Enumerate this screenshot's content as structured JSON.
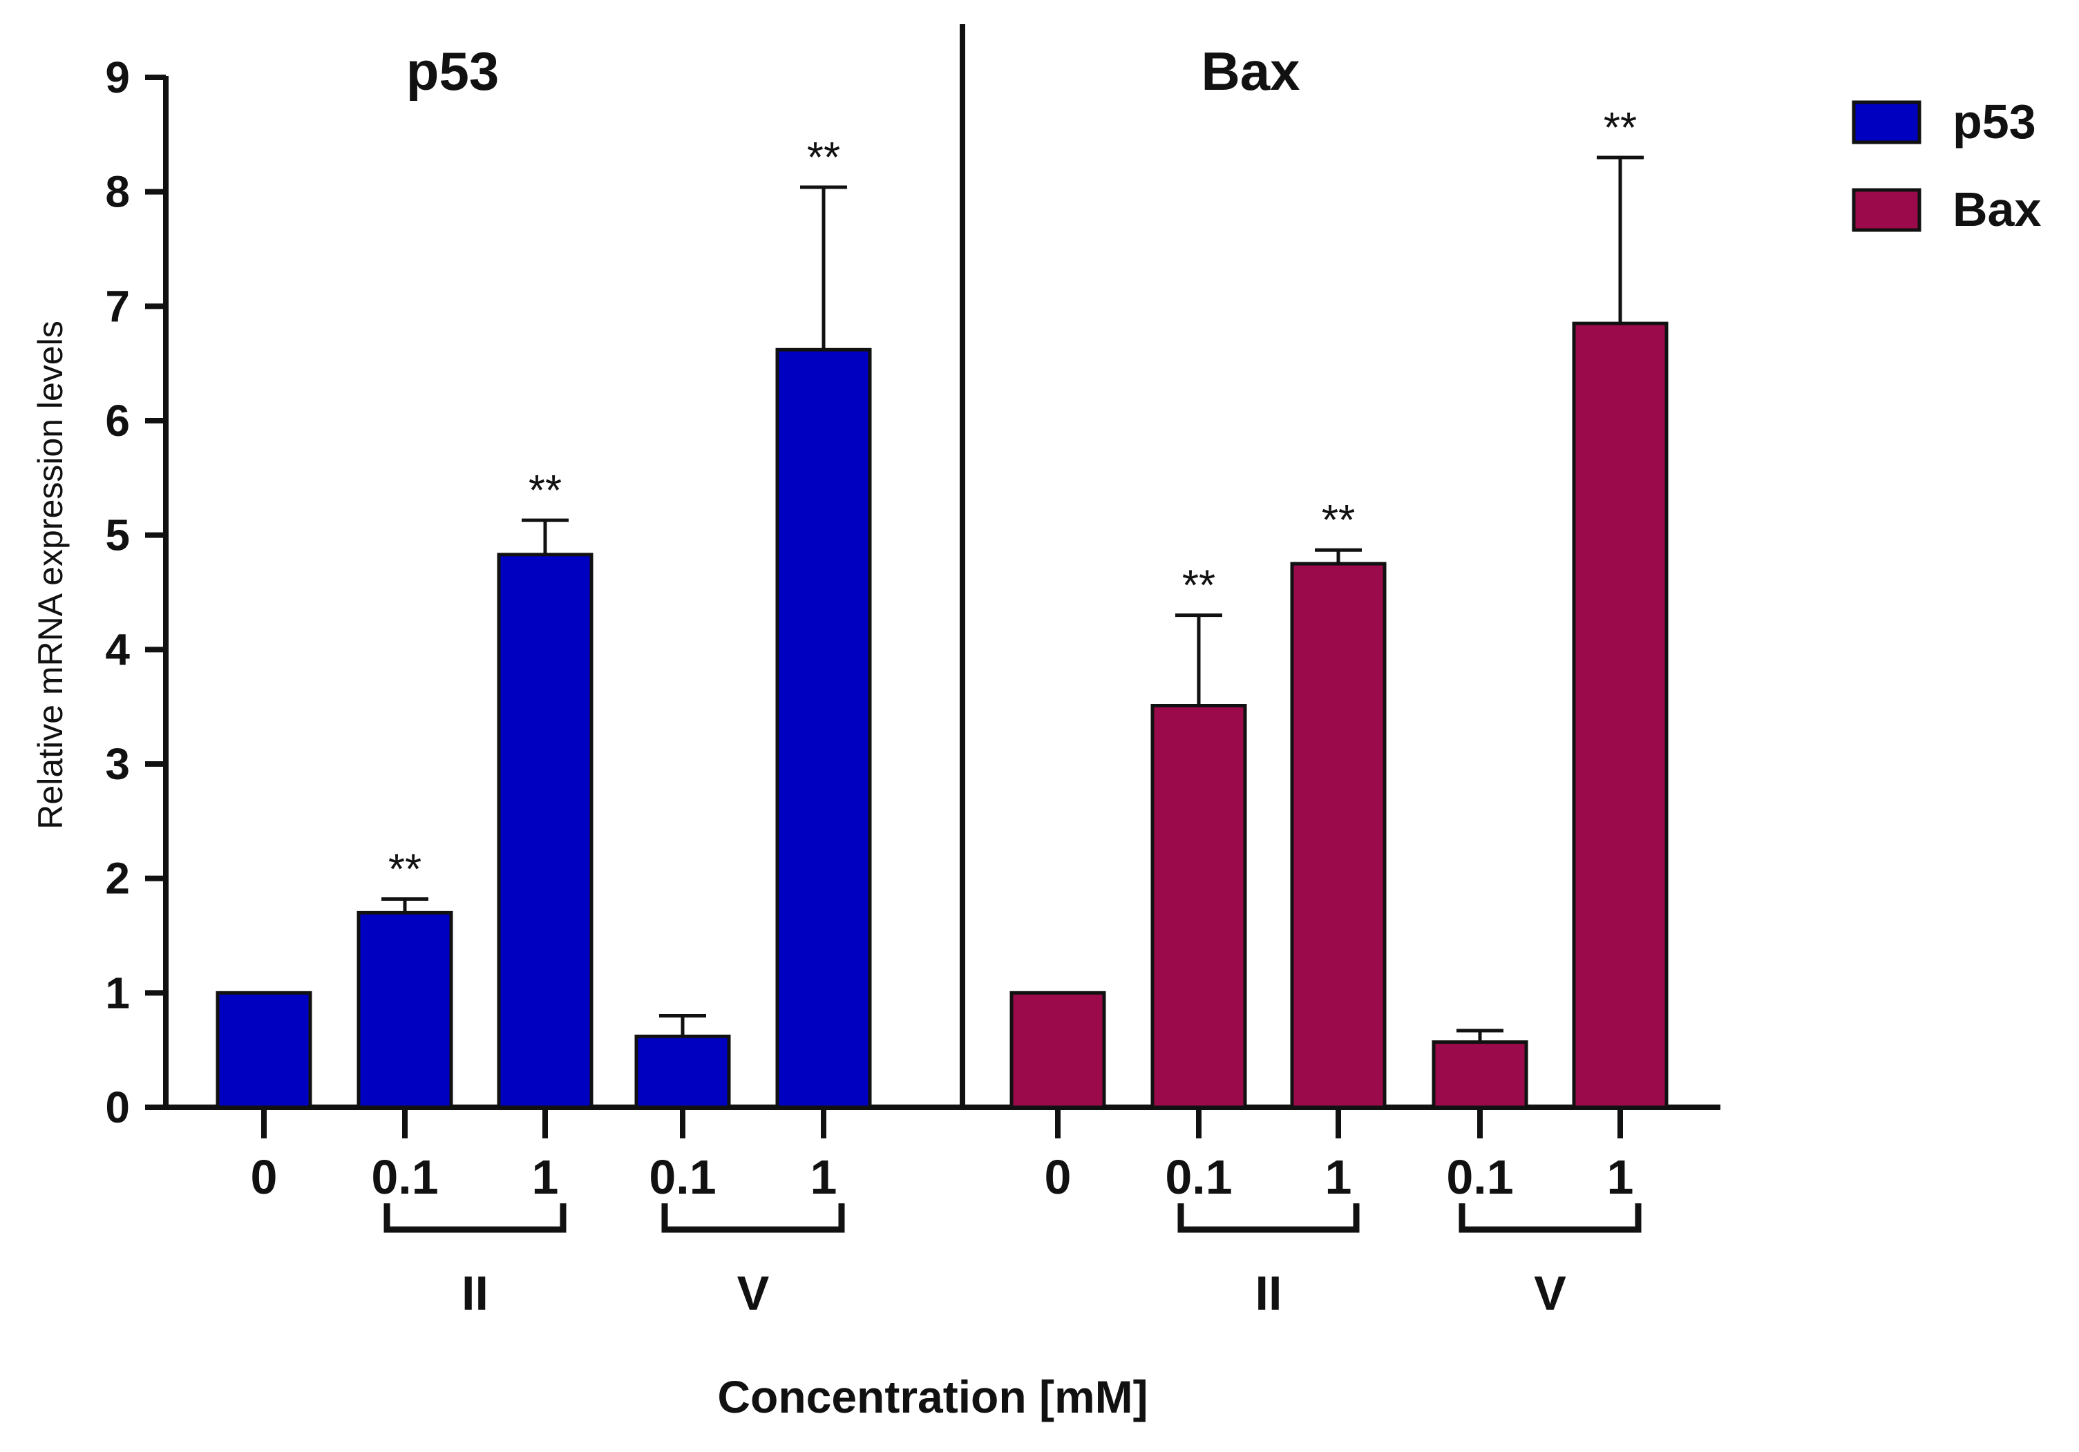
{
  "chart_data": {
    "type": "bar",
    "ylabel": "Relative mRNA expression levels",
    "xlabel": "Concentration [mM]",
    "ylim": [
      0,
      9
    ],
    "yticks": [
      0,
      1,
      2,
      3,
      4,
      5,
      6,
      7,
      8,
      9
    ],
    "grid": false,
    "legend": {
      "position": "top-right",
      "entries": [
        {
          "label": "p53",
          "color": "#0000c0"
        },
        {
          "label": "Bax",
          "color": "#9b0a4a"
        }
      ]
    },
    "panels": [
      {
        "title": "p53",
        "series": "p53",
        "color": "#0000c0",
        "bars": [
          {
            "category": "0",
            "group": "",
            "value": 1.0,
            "error": 0.0,
            "significance": ""
          },
          {
            "category": "0.1",
            "group": "II",
            "value": 1.7,
            "error": 0.12,
            "significance": "**"
          },
          {
            "category": "1",
            "group": "II",
            "value": 4.83,
            "error": 0.3,
            "significance": "**"
          },
          {
            "category": "0.1",
            "group": "V",
            "value": 0.62,
            "error": 0.18,
            "significance": ""
          },
          {
            "category": "1",
            "group": "V",
            "value": 6.62,
            "error": 1.42,
            "significance": "**"
          }
        ],
        "groups": [
          {
            "label": "II",
            "from": 1,
            "to": 2
          },
          {
            "label": "V",
            "from": 3,
            "to": 4
          }
        ]
      },
      {
        "title": "Bax",
        "series": "Bax",
        "color": "#9b0a4a",
        "bars": [
          {
            "category": "0",
            "group": "",
            "value": 1.0,
            "error": 0.0,
            "significance": ""
          },
          {
            "category": "0.1",
            "group": "II",
            "value": 3.51,
            "error": 0.79,
            "significance": "**"
          },
          {
            "category": "1",
            "group": "II",
            "value": 4.75,
            "error": 0.12,
            "significance": "**"
          },
          {
            "category": "0.1",
            "group": "V",
            "value": 0.57,
            "error": 0.1,
            "significance": ""
          },
          {
            "category": "1",
            "group": "V",
            "value": 6.85,
            "error": 1.45,
            "significance": "**"
          }
        ],
        "groups": [
          {
            "label": "II",
            "from": 1,
            "to": 2
          },
          {
            "label": "V",
            "from": 3,
            "to": 4
          }
        ]
      }
    ]
  }
}
